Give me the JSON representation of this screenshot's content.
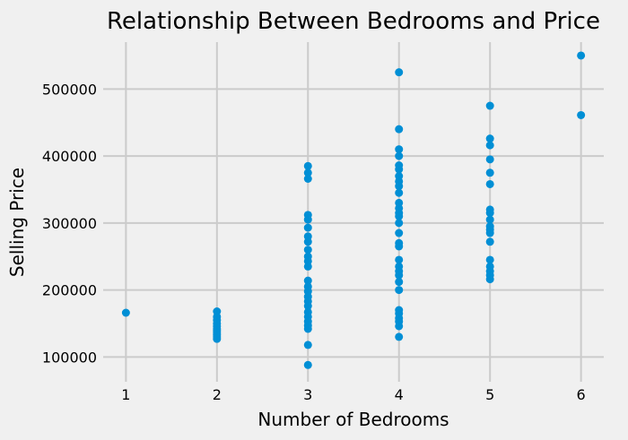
{
  "chart_data": {
    "type": "scatter",
    "title": "Relationship Between Bedrooms and Price",
    "xlabel": "Number of Bedrooms",
    "ylabel": "Selling Price",
    "xlim": [
      0.75,
      6.25
    ],
    "ylim": [
      63000,
      570000
    ],
    "xticks": [
      1,
      2,
      3,
      4,
      5,
      6
    ],
    "yticks": [
      100000,
      200000,
      300000,
      400000,
      500000
    ],
    "xtick_labels": [
      "1",
      "2",
      "3",
      "4",
      "5",
      "6"
    ],
    "ytick_labels": [
      "100000",
      "200000",
      "300000",
      "400000",
      "500000"
    ],
    "grid": true,
    "legend": "none",
    "colors": {
      "background": "#f0f0f0",
      "grid": "#cbcbcb",
      "point": "#008fd5"
    },
    "series": [
      {
        "points": [
          [
            1,
            166000
          ],
          [
            2,
            168000
          ],
          [
            2,
            160000
          ],
          [
            2,
            155000
          ],
          [
            2,
            150000
          ],
          [
            2,
            146000
          ],
          [
            2,
            142000
          ],
          [
            2,
            139000
          ],
          [
            2,
            136000
          ],
          [
            2,
            133000
          ],
          [
            2,
            130000
          ],
          [
            2,
            127000
          ],
          [
            3,
            385000
          ],
          [
            3,
            375000
          ],
          [
            3,
            366000
          ],
          [
            3,
            312000
          ],
          [
            3,
            305000
          ],
          [
            3,
            293000
          ],
          [
            3,
            280000
          ],
          [
            3,
            272000
          ],
          [
            3,
            260000
          ],
          [
            3,
            250000
          ],
          [
            3,
            243000
          ],
          [
            3,
            235000
          ],
          [
            3,
            214000
          ],
          [
            3,
            205000
          ],
          [
            3,
            198000
          ],
          [
            3,
            190000
          ],
          [
            3,
            183000
          ],
          [
            3,
            176000
          ],
          [
            3,
            167000
          ],
          [
            3,
            160000
          ],
          [
            3,
            153000
          ],
          [
            3,
            147000
          ],
          [
            3,
            142000
          ],
          [
            3,
            118000
          ],
          [
            3,
            88000
          ],
          [
            4,
            525000
          ],
          [
            4,
            440000
          ],
          [
            4,
            410000
          ],
          [
            4,
            400000
          ],
          [
            4,
            386000
          ],
          [
            4,
            380000
          ],
          [
            4,
            370000
          ],
          [
            4,
            362000
          ],
          [
            4,
            355000
          ],
          [
            4,
            345000
          ],
          [
            4,
            330000
          ],
          [
            4,
            322000
          ],
          [
            4,
            315000
          ],
          [
            4,
            310000
          ],
          [
            4,
            300000
          ],
          [
            4,
            285000
          ],
          [
            4,
            270000
          ],
          [
            4,
            265000
          ],
          [
            4,
            245000
          ],
          [
            4,
            235000
          ],
          [
            4,
            228000
          ],
          [
            4,
            222000
          ],
          [
            4,
            212000
          ],
          [
            4,
            200000
          ],
          [
            4,
            170000
          ],
          [
            4,
            165000
          ],
          [
            4,
            158000
          ],
          [
            4,
            153000
          ],
          [
            4,
            146000
          ],
          [
            4,
            130000
          ],
          [
            5,
            475000
          ],
          [
            5,
            426000
          ],
          [
            5,
            416000
          ],
          [
            5,
            395000
          ],
          [
            5,
            375000
          ],
          [
            5,
            358000
          ],
          [
            5,
            320000
          ],
          [
            5,
            315000
          ],
          [
            5,
            305000
          ],
          [
            5,
            295000
          ],
          [
            5,
            290000
          ],
          [
            5,
            285000
          ],
          [
            5,
            272000
          ],
          [
            5,
            245000
          ],
          [
            5,
            235000
          ],
          [
            5,
            228000
          ],
          [
            5,
            222000
          ],
          [
            5,
            216000
          ],
          [
            6,
            550000
          ],
          [
            6,
            461000
          ]
        ]
      }
    ]
  }
}
